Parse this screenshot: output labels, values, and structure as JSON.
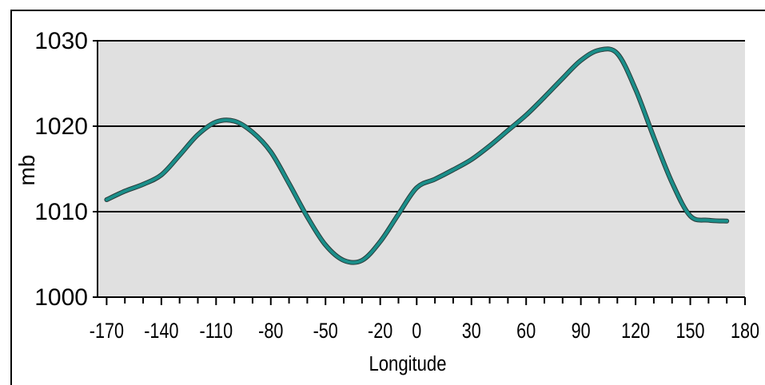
{
  "chart_data": {
    "type": "line",
    "title": "",
    "xlabel": "Longitude",
    "ylabel": "mb",
    "xlim": [
      -175,
      180
    ],
    "ylim": [
      1000,
      1030
    ],
    "grid": "horizontal",
    "x_tick_labels": [
      "-170",
      "-140",
      "-110",
      "-80",
      "-50",
      "-20",
      "0",
      "30",
      "60",
      "90",
      "120",
      "150",
      "180"
    ],
    "x_tick_values": [
      -170,
      -140,
      -110,
      -80,
      -50,
      -20,
      0,
      30,
      60,
      90,
      120,
      150,
      180
    ],
    "y_tick_labels": [
      "1000",
      "1010",
      "1020",
      "1030"
    ],
    "y_tick_values": [
      1000,
      1010,
      1020,
      1030
    ],
    "colors": {
      "line": "#1a8f8a",
      "plot_bg": "#e0e0e0",
      "grid": "#000000"
    },
    "series": [
      {
        "x": [
          -170,
          -160,
          -150,
          -140,
          -130,
          -120,
          -110,
          -100,
          -90,
          -80,
          -70,
          -60,
          -50,
          -40,
          -30,
          -20,
          -10,
          0,
          10,
          20,
          30,
          40,
          50,
          60,
          70,
          80,
          90,
          100,
          110,
          120,
          130,
          140,
          150,
          160,
          170
        ],
        "values": [
          1011.4,
          1012.4,
          1013.2,
          1014.3,
          1016.6,
          1019.0,
          1020.5,
          1020.6,
          1019.3,
          1017.0,
          1013.3,
          1009.4,
          1006.1,
          1004.3,
          1004.3,
          1006.5,
          1009.7,
          1012.8,
          1013.8,
          1014.9,
          1016.1,
          1017.7,
          1019.5,
          1021.3,
          1023.4,
          1025.6,
          1027.7,
          1028.9,
          1028.5,
          1024.3,
          1018.7,
          1013.4,
          1009.5,
          1009.0,
          1008.9
        ]
      }
    ]
  }
}
